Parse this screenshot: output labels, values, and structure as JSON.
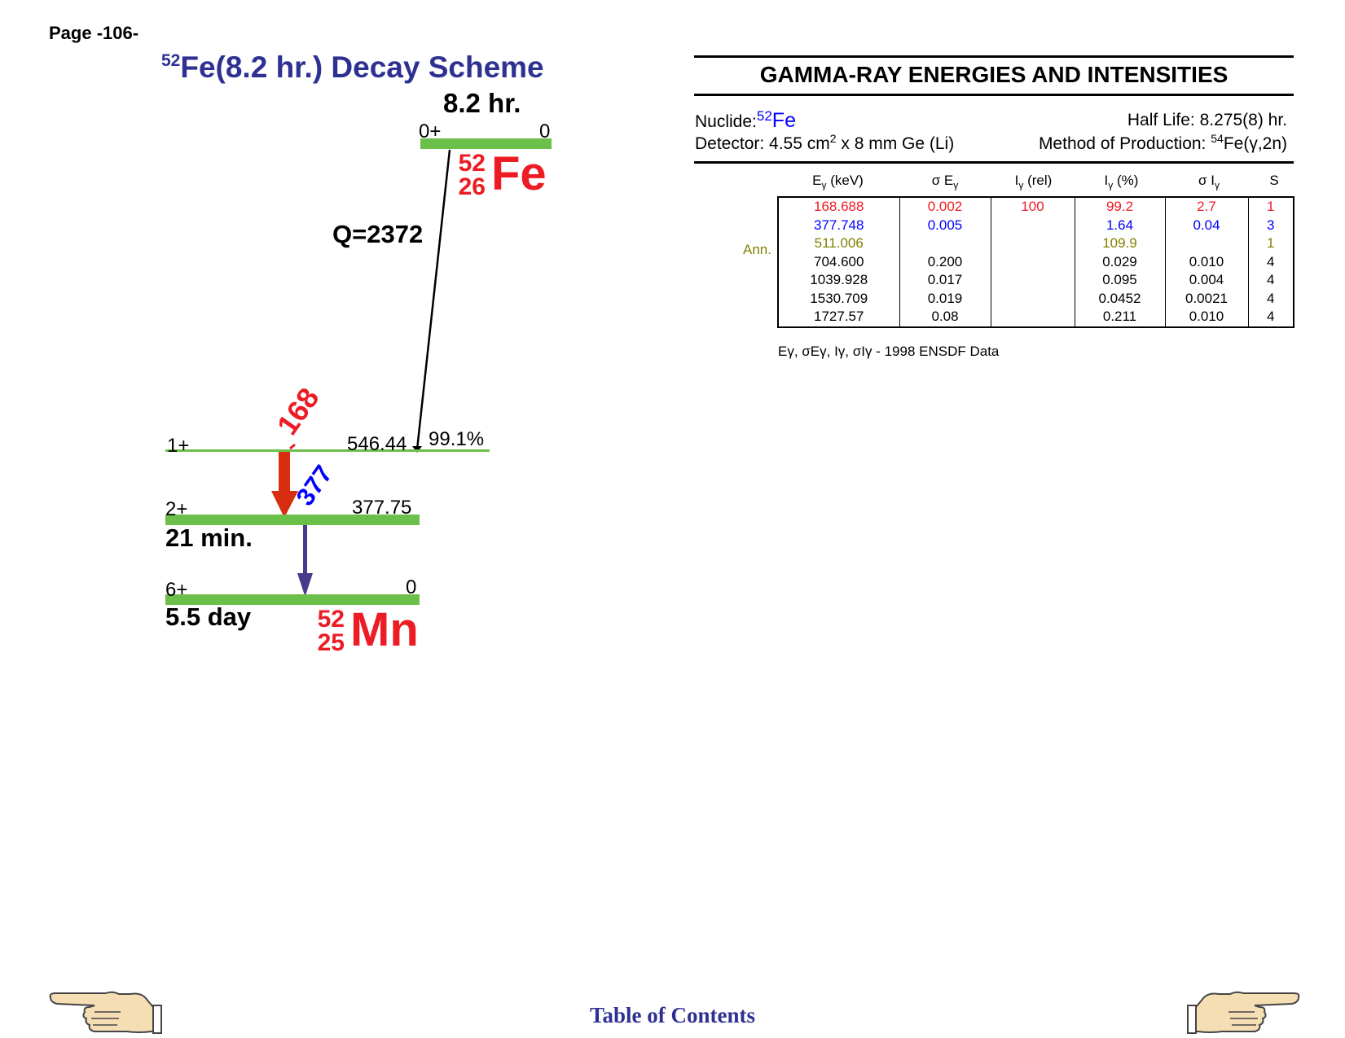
{
  "page": {
    "number": "Page -106-"
  },
  "scheme": {
    "title_sup": "52",
    "title_text": "Fe(8.2 hr.) Decay Scheme",
    "parent": {
      "half_life": "8.2 hr.",
      "spin": "0+",
      "energy": "0",
      "mass": "52",
      "z": "26",
      "symbol": "Fe"
    },
    "q_value": "Q=2372",
    "levels": [
      {
        "spin": "1+",
        "energy": "546.44",
        "branch": "99.1%"
      },
      {
        "spin": "2+",
        "energy": "377.75",
        "half_life": "21 min."
      },
      {
        "spin": "6+",
        "energy": "0",
        "half_life": "5.5 day"
      }
    ],
    "daughter": {
      "mass": "52",
      "z": "25",
      "symbol": "Mn"
    },
    "gammas": [
      {
        "label": "168",
        "color": "#ed1c24"
      },
      {
        "label": "377",
        "color": "#0000ff"
      }
    ],
    "colors": {
      "level": "#6cc04a",
      "title": "#2e3192",
      "nuclide": "#ed1c24",
      "arrow_168": "#d62e0e",
      "arrow_377": "#4b3a8c"
    }
  },
  "table_panel": {
    "title": "GAMMA-RAY ENERGIES AND INTENSITIES",
    "nuclide_label": "Nuclide:",
    "nuclide_sup": "52",
    "nuclide_sym": "Fe",
    "half_life": "Half Life: 8.275(8) hr.",
    "detector_pre": "Detector: 4.55 cm",
    "detector_sup": "2",
    "detector_post": " x 8 mm Ge (Li)",
    "production_pre": "Method of Production: ",
    "production_sup": "54",
    "production_post": "Fe(γ,2n)",
    "headers": [
      "E",
      "σ E",
      "I",
      "I",
      "σ I",
      "S"
    ],
    "header_subs": [
      "γ",
      "γ",
      "γ",
      "γ",
      "γ",
      ""
    ],
    "header_suffix": [
      " (keV)",
      "",
      " (rel)",
      " (%)",
      "",
      ""
    ],
    "ann_label": "Ann.",
    "rows": [
      [
        "168.688",
        "0.002",
        "100",
        "99.2",
        "2.7",
        "1"
      ],
      [
        "377.748",
        "0.005",
        "",
        "1.64",
        "0.04",
        "3"
      ],
      [
        "511.006",
        "",
        "",
        "109.9",
        "",
        "1"
      ],
      [
        "704.600",
        "0.200",
        "",
        "0.029",
        "0.010",
        "4"
      ],
      [
        "1039.928",
        "0.017",
        "",
        "0.095",
        "0.004",
        "4"
      ],
      [
        "1530.709",
        "0.019",
        "",
        "0.0452",
        "0.0021",
        "4"
      ],
      [
        "1727.57",
        "0.08",
        "",
        "0.211",
        "0.010",
        "4"
      ]
    ],
    "footnote_symbols": "Eγ, σEγ, Iγ, σIγ -",
    "footnote": "1998 ENSDF Data"
  },
  "nav": {
    "toc": "Table of Contents",
    "prev_icon": "pointing-hand-left-icon",
    "next_icon": "pointing-hand-right-icon"
  }
}
